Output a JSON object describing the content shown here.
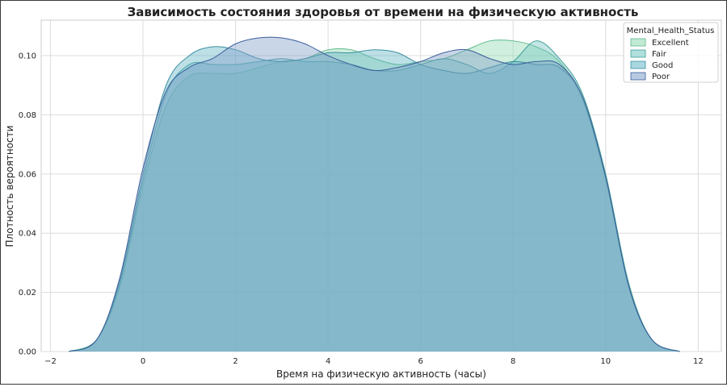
{
  "chart_data": {
    "type": "area",
    "title": "Зависимость состояния здоровья от времени на физическую активность",
    "xlabel": "Время на физическую активность (часы)",
    "ylabel": "Плотность вероятности",
    "xlim": [
      -2.2,
      12.5
    ],
    "ylim": [
      0,
      0.112
    ],
    "x_ticks": [
      -2,
      0,
      2,
      4,
      6,
      8,
      10,
      12
    ],
    "y_ticks": [
      0.0,
      0.02,
      0.04,
      0.06,
      0.08,
      0.1
    ],
    "x_tick_labels": [
      "−2",
      "0",
      "2",
      "4",
      "6",
      "8",
      "10",
      "12"
    ],
    "y_tick_labels": [
      "0.00",
      "0.02",
      "0.04",
      "0.06",
      "0.08",
      "0.10"
    ],
    "grid": true,
    "legend": {
      "title": "Mental_Health_Status",
      "placement": "top-right"
    },
    "series": [
      {
        "name": "Excellent",
        "color": "#8ed8b0",
        "line_color": "#5cb98a",
        "x": [
          -1.6,
          -1.0,
          -0.5,
          0.0,
          0.5,
          1.0,
          1.5,
          2.0,
          2.5,
          3.0,
          3.5,
          4.0,
          4.5,
          5.0,
          5.5,
          6.0,
          6.5,
          7.0,
          7.5,
          8.0,
          8.5,
          9.0,
          9.5,
          10.0,
          10.5,
          11.0,
          11.6
        ],
        "y": [
          0.0,
          0.004,
          0.022,
          0.056,
          0.083,
          0.093,
          0.094,
          0.094,
          0.096,
          0.098,
          0.099,
          0.102,
          0.102,
          0.099,
          0.097,
          0.098,
          0.099,
          0.102,
          0.105,
          0.105,
          0.103,
          0.098,
          0.085,
          0.058,
          0.022,
          0.004,
          0.0
        ]
      },
      {
        "name": "Fair",
        "color": "#6fc4bf",
        "line_color": "#3f9e98",
        "x": [
          -1.6,
          -1.0,
          -0.5,
          0.0,
          0.5,
          1.0,
          1.5,
          2.0,
          2.5,
          3.0,
          3.5,
          4.0,
          4.5,
          5.0,
          5.5,
          6.0,
          6.5,
          7.0,
          7.5,
          8.0,
          8.5,
          9.0,
          9.5,
          10.0,
          10.5,
          11.0,
          11.6
        ],
        "y": [
          0.0,
          0.004,
          0.023,
          0.058,
          0.087,
          0.097,
          0.097,
          0.097,
          0.098,
          0.099,
          0.098,
          0.098,
          0.097,
          0.095,
          0.095,
          0.097,
          0.099,
          0.097,
          0.094,
          0.098,
          0.105,
          0.099,
          0.087,
          0.06,
          0.023,
          0.004,
          0.0
        ]
      },
      {
        "name": "Good",
        "color": "#62b6c6",
        "line_color": "#3b8ea0",
        "x": [
          -1.6,
          -1.0,
          -0.5,
          0.0,
          0.5,
          1.0,
          1.5,
          2.0,
          2.5,
          3.0,
          3.5,
          4.0,
          4.5,
          5.0,
          5.5,
          6.0,
          6.5,
          7.0,
          7.5,
          8.0,
          8.5,
          9.0,
          9.5,
          10.0,
          10.5,
          11.0,
          11.6
        ],
        "y": [
          0.0,
          0.004,
          0.024,
          0.06,
          0.09,
          0.1,
          0.103,
          0.102,
          0.099,
          0.098,
          0.099,
          0.101,
          0.101,
          0.102,
          0.101,
          0.097,
          0.095,
          0.094,
          0.096,
          0.098,
          0.097,
          0.096,
          0.086,
          0.059,
          0.022,
          0.004,
          0.0
        ]
      },
      {
        "name": "Poor",
        "color": "#7e9ec8",
        "line_color": "#3b5e9a",
        "x": [
          -1.6,
          -1.0,
          -0.5,
          0.0,
          0.5,
          1.0,
          1.5,
          2.0,
          2.5,
          3.0,
          3.5,
          4.0,
          4.5,
          5.0,
          5.5,
          6.0,
          6.5,
          7.0,
          7.5,
          8.0,
          8.5,
          9.0,
          9.5,
          10.0,
          10.5,
          11.0,
          11.6
        ],
        "y": [
          0.0,
          0.004,
          0.025,
          0.062,
          0.088,
          0.096,
          0.099,
          0.104,
          0.106,
          0.106,
          0.104,
          0.1,
          0.097,
          0.095,
          0.096,
          0.098,
          0.101,
          0.102,
          0.099,
          0.097,
          0.098,
          0.097,
          0.086,
          0.059,
          0.022,
          0.004,
          0.0
        ]
      }
    ]
  }
}
